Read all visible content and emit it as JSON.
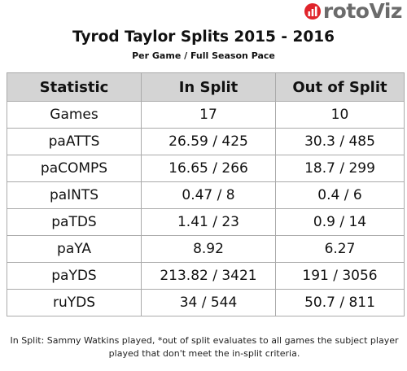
{
  "logo": {
    "text": "rotoViz"
  },
  "title": "Tyrod Taylor Splits 2015 - 2016",
  "subtitle": "Per Game / Full Season Pace",
  "table": {
    "headers": [
      "Statistic",
      "In Split",
      "Out of Split"
    ],
    "rows": [
      [
        "Games",
        "17",
        "10"
      ],
      [
        "paATTS",
        "26.59 / 425",
        "30.3 / 485"
      ],
      [
        "paCOMPS",
        "16.65 / 266",
        "18.7 / 299"
      ],
      [
        "paINTS",
        "0.47 / 8",
        "0.4 / 6"
      ],
      [
        "paTDS",
        "1.41 / 23",
        "0.9 / 14"
      ],
      [
        "paYA",
        "8.92",
        "6.27"
      ],
      [
        "paYDS",
        "213.82 / 3421",
        "191 / 3056"
      ],
      [
        "ruYDS",
        "34 / 544",
        "50.7 / 811"
      ]
    ]
  },
  "footnote": "In Split: Sammy Watkins played,  *out of split evaluates to all games the subject player played that don't meet the in-split criteria.",
  "colors": {
    "logo_red": "#e0242b",
    "logo_gray": "#6b6b6b",
    "header_bg": "#d4d4d4",
    "border": "#aaaaaa"
  }
}
